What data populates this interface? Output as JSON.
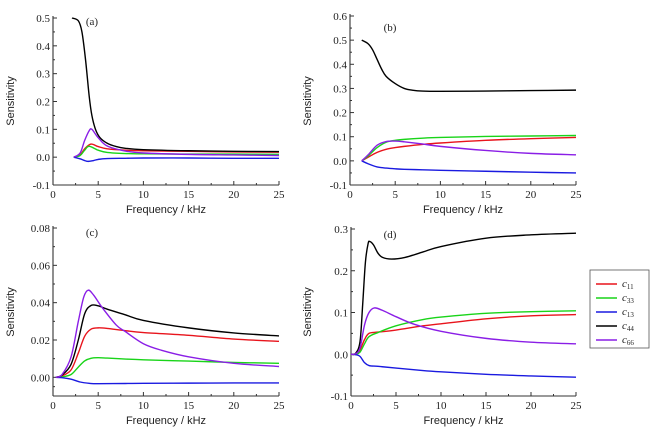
{
  "chart_data": [
    {
      "type": "line",
      "panel": "(a)",
      "xlabel": "Frequency / kHz",
      "ylabel": "Sensitivity",
      "xlim": [
        0,
        25
      ],
      "ylim": [
        -0.1,
        0.5
      ],
      "xticks": [
        0,
        5,
        10,
        15,
        20,
        25
      ],
      "yticks": [
        -0.1,
        0.0,
        0.1,
        0.2,
        0.3,
        0.4,
        0.5
      ],
      "ytick_labels": [
        "-0.1",
        "0.0",
        "0.1",
        "0.2",
        "0.3",
        "0.4",
        "0.5"
      ],
      "series": [
        {
          "name": "c11",
          "color": "#e8141c",
          "x": [
            2.3,
            3.0,
            3.5,
            4.2,
            5,
            6,
            8,
            10,
            15,
            20,
            25
          ],
          "y": [
            0.0,
            0.008,
            0.03,
            0.047,
            0.038,
            0.03,
            0.025,
            0.023,
            0.021,
            0.019,
            0.018
          ]
        },
        {
          "name": "c33",
          "color": "#19d419",
          "x": [
            2.3,
            3.0,
            3.5,
            4.0,
            5,
            6,
            8,
            10,
            15,
            20,
            25
          ],
          "y": [
            0.0,
            0.006,
            0.025,
            0.039,
            0.025,
            0.017,
            0.013,
            0.012,
            0.011,
            0.011,
            0.01
          ]
        },
        {
          "name": "c13",
          "color": "#1a1ae0",
          "x": [
            2.3,
            3.0,
            3.8,
            4.5,
            5,
            6,
            8,
            10,
            15,
            20,
            25
          ],
          "y": [
            0.0,
            -0.006,
            -0.015,
            -0.012,
            -0.008,
            -0.005,
            -0.004,
            -0.003,
            -0.003,
            -0.004,
            -0.004
          ]
        },
        {
          "name": "c44",
          "color": "#000000",
          "x": [
            2.1,
            2.8,
            3.2,
            3.6,
            4.0,
            4.3,
            4.7,
            5.2,
            6,
            7,
            8,
            10,
            15,
            20,
            25
          ],
          "y": [
            0.5,
            0.49,
            0.45,
            0.35,
            0.22,
            0.15,
            0.1,
            0.07,
            0.05,
            0.038,
            0.032,
            0.027,
            0.023,
            0.021,
            0.02
          ]
        },
        {
          "name": "c66",
          "color": "#8a1ee6",
          "x": [
            2.3,
            3.0,
            3.5,
            4.0,
            4.3,
            5,
            6,
            8,
            10,
            15,
            20,
            25
          ],
          "y": [
            0.0,
            0.015,
            0.06,
            0.095,
            0.1,
            0.07,
            0.04,
            0.022,
            0.015,
            0.01,
            0.008,
            0.006
          ]
        }
      ]
    },
    {
      "type": "line",
      "panel": "(b)",
      "xlabel": "Frequency / kHz",
      "ylabel": "Sensitivity",
      "xlim": [
        0,
        25
      ],
      "ylim": [
        -0.1,
        0.6
      ],
      "xticks": [
        0,
        5,
        10,
        15,
        20,
        25
      ],
      "yticks": [
        -0.1,
        0.0,
        0.1,
        0.2,
        0.3,
        0.4,
        0.5,
        0.6
      ],
      "ytick_labels": [
        "-0.1",
        "0.0",
        "0.1",
        "0.2",
        "0.3",
        "0.4",
        "0.5",
        "0.6"
      ],
      "series": [
        {
          "name": "c11",
          "color": "#e8141c",
          "x": [
            1.3,
            2,
            3,
            4,
            5,
            6,
            8,
            10,
            15,
            20,
            25
          ],
          "y": [
            0.0,
            0.015,
            0.035,
            0.048,
            0.055,
            0.06,
            0.068,
            0.074,
            0.085,
            0.092,
            0.097
          ]
        },
        {
          "name": "c33",
          "color": "#19d419",
          "x": [
            1.3,
            2,
            3,
            4,
            5,
            6,
            8,
            10,
            15,
            20,
            25
          ],
          "y": [
            0.0,
            0.02,
            0.055,
            0.077,
            0.085,
            0.089,
            0.094,
            0.097,
            0.101,
            0.103,
            0.105
          ]
        },
        {
          "name": "c13",
          "color": "#1a1ae0",
          "x": [
            1.3,
            2,
            3,
            4,
            5,
            6,
            8,
            10,
            15,
            20,
            25
          ],
          "y": [
            0.0,
            -0.012,
            -0.025,
            -0.03,
            -0.033,
            -0.035,
            -0.037,
            -0.039,
            -0.043,
            -0.047,
            -0.05
          ]
        },
        {
          "name": "c44",
          "color": "#000000",
          "x": [
            1.3,
            2,
            2.5,
            3,
            3.5,
            4,
            5,
            6,
            7,
            8,
            10,
            15,
            20,
            25
          ],
          "y": [
            0.5,
            0.485,
            0.46,
            0.42,
            0.38,
            0.35,
            0.32,
            0.3,
            0.292,
            0.289,
            0.288,
            0.289,
            0.291,
            0.293
          ]
        },
        {
          "name": "c66",
          "color": "#8a1ee6",
          "x": [
            1.3,
            2,
            3,
            4,
            5,
            6,
            8,
            10,
            15,
            20,
            25
          ],
          "y": [
            0.0,
            0.025,
            0.065,
            0.08,
            0.082,
            0.079,
            0.07,
            0.06,
            0.043,
            0.031,
            0.025
          ]
        }
      ]
    },
    {
      "type": "line",
      "panel": "(c)",
      "xlabel": "Frequency / kHz",
      "ylabel": "Sensitivity",
      "xlim": [
        0,
        25
      ],
      "ylim": [
        -0.01,
        0.08
      ],
      "xticks": [
        0,
        5,
        10,
        15,
        20,
        25
      ],
      "yticks": [
        0.0,
        0.02,
        0.04,
        0.06,
        0.08
      ],
      "ytick_labels": [
        "0.00",
        "0.02",
        "0.04",
        "0.06",
        "0.08"
      ],
      "series": [
        {
          "name": "c11",
          "color": "#e8141c",
          "x": [
            0.3,
            1,
            2,
            2.8,
            3.5,
            4.2,
            5,
            6,
            8,
            10,
            15,
            20,
            25
          ],
          "y": [
            0.0,
            0.0008,
            0.004,
            0.013,
            0.022,
            0.0258,
            0.0265,
            0.0262,
            0.025,
            0.024,
            0.0225,
            0.0205,
            0.0193
          ]
        },
        {
          "name": "c33",
          "color": "#19d419",
          "x": [
            0.3,
            1,
            2,
            2.8,
            3.5,
            4.2,
            5,
            6,
            8,
            10,
            15,
            20,
            25
          ],
          "y": [
            0.0,
            0.0002,
            0.0015,
            0.0055,
            0.0088,
            0.0102,
            0.0105,
            0.0103,
            0.0098,
            0.0094,
            0.0087,
            0.008,
            0.0075
          ]
        },
        {
          "name": "c13",
          "color": "#1a1ae0",
          "x": [
            0.3,
            1,
            2,
            3,
            4,
            5,
            8,
            10,
            15,
            20,
            25
          ],
          "y": [
            0.0,
            -0.0002,
            -0.001,
            -0.0025,
            -0.0032,
            -0.0034,
            -0.0033,
            -0.0032,
            -0.0031,
            -0.003,
            -0.003
          ]
        },
        {
          "name": "c44",
          "color": "#000000",
          "x": [
            0.3,
            1,
            2,
            2.8,
            3.5,
            4.2,
            5,
            6,
            8,
            10,
            15,
            20,
            25
          ],
          "y": [
            0.0,
            0.0012,
            0.007,
            0.02,
            0.034,
            0.0385,
            0.0383,
            0.0365,
            0.0335,
            0.0305,
            0.0265,
            0.0238,
            0.0222
          ]
        },
        {
          "name": "c66",
          "color": "#8a1ee6",
          "x": [
            0.3,
            1,
            2,
            2.8,
            3.4,
            3.9,
            4.5,
            5.5,
            7,
            8,
            10,
            12,
            15,
            20,
            25
          ],
          "y": [
            0.0,
            0.0015,
            0.011,
            0.03,
            0.043,
            0.0467,
            0.044,
            0.037,
            0.028,
            0.0245,
            0.018,
            0.0145,
            0.011,
            0.0075,
            0.0058
          ]
        }
      ]
    },
    {
      "type": "line",
      "panel": "(d)",
      "xlabel": "Frequency / kHz",
      "ylabel": "Sensitivity",
      "xlim": [
        0,
        25
      ],
      "ylim": [
        -0.1,
        0.3
      ],
      "xticks": [
        0,
        5,
        10,
        15,
        20,
        25
      ],
      "yticks": [
        -0.1,
        0.0,
        0.1,
        0.2,
        0.3
      ],
      "ytick_labels": [
        "-0.1",
        "0.0",
        "0.1",
        "0.2",
        "0.3"
      ],
      "series": [
        {
          "name": "c11",
          "color": "#e8141c",
          "x": [
            0,
            0.5,
            1,
            1.5,
            2,
            3,
            5,
            8,
            10,
            15,
            20,
            25
          ],
          "y": [
            0.0,
            0.001,
            0.01,
            0.035,
            0.05,
            0.053,
            0.058,
            0.068,
            0.073,
            0.085,
            0.092,
            0.095
          ]
        },
        {
          "name": "c33",
          "color": "#19d419",
          "x": [
            0,
            0.5,
            1,
            1.5,
            2,
            3,
            5,
            8,
            10,
            15,
            20,
            25
          ],
          "y": [
            0.0,
            0.0,
            0.005,
            0.025,
            0.042,
            0.052,
            0.068,
            0.083,
            0.089,
            0.098,
            0.102,
            0.104
          ]
        },
        {
          "name": "c13",
          "color": "#1a1ae0",
          "x": [
            0,
            0.5,
            1,
            1.5,
            2,
            3,
            5,
            8,
            10,
            15,
            20,
            25
          ],
          "y": [
            0.0,
            -0.001,
            -0.005,
            -0.02,
            -0.027,
            -0.029,
            -0.033,
            -0.039,
            -0.042,
            -0.048,
            -0.052,
            -0.055
          ]
        },
        {
          "name": "c44",
          "color": "#000000",
          "x": [
            0,
            0.5,
            1,
            1.3,
            1.6,
            1.9,
            2.1,
            2.5,
            3,
            3.5,
            4.5,
            6,
            8,
            10,
            15,
            20,
            25
          ],
          "y": [
            0.0,
            0.002,
            0.03,
            0.12,
            0.22,
            0.265,
            0.27,
            0.262,
            0.242,
            0.232,
            0.228,
            0.232,
            0.245,
            0.258,
            0.278,
            0.286,
            0.29
          ]
        },
        {
          "name": "c66",
          "color": "#8a1ee6",
          "x": [
            0,
            0.5,
            1,
            1.5,
            2,
            2.6,
            3.5,
            5,
            7,
            10,
            15,
            20,
            25
          ],
          "y": [
            0.0,
            0.001,
            0.015,
            0.07,
            0.1,
            0.111,
            0.105,
            0.09,
            0.072,
            0.055,
            0.038,
            0.029,
            0.025
          ]
        }
      ]
    }
  ],
  "legend": {
    "entries": [
      {
        "base": "c",
        "sub": "11",
        "color": "#e8141c"
      },
      {
        "base": "c",
        "sub": "33",
        "color": "#19d419"
      },
      {
        "base": "c",
        "sub": "13",
        "color": "#1a1ae0"
      },
      {
        "base": "c",
        "sub": "44",
        "color": "#000000"
      },
      {
        "base": "c",
        "sub": "66",
        "color": "#8a1ee6"
      }
    ],
    "placement": "right of panel (d)"
  }
}
